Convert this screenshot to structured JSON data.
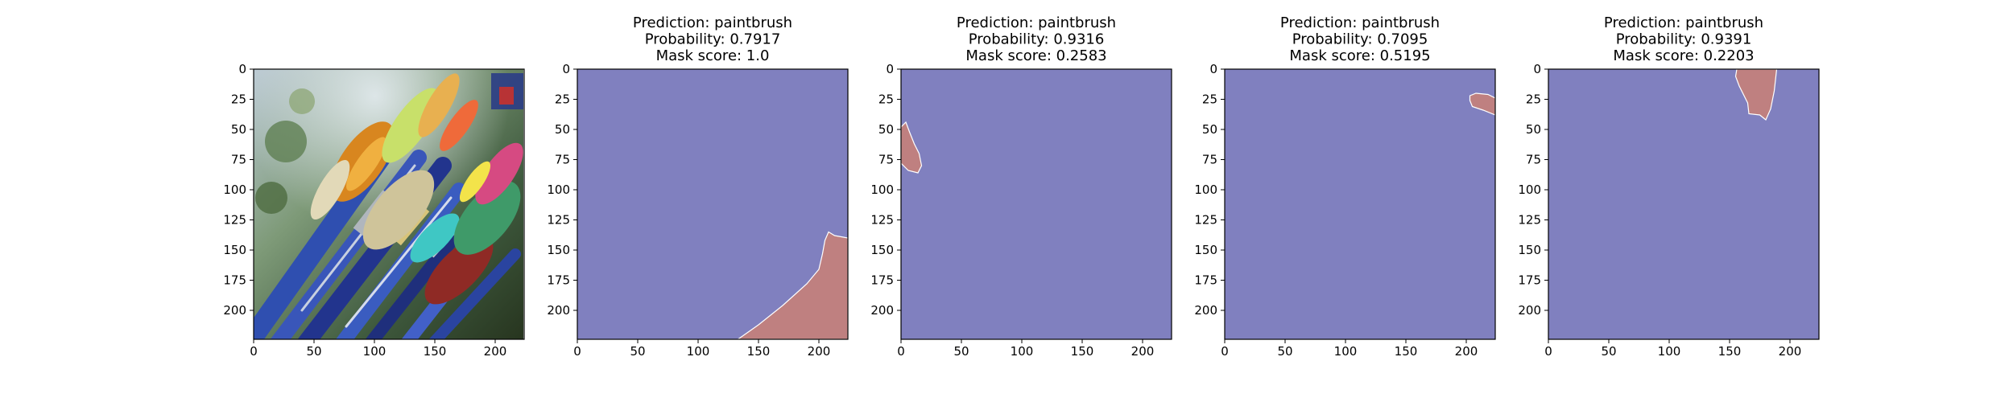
{
  "figure": {
    "panels": [
      {
        "id": "original",
        "kind": "image",
        "image_description": "paintbrushes-photo",
        "title_lines": [],
        "xlim": [
          0,
          224
        ],
        "ylim": [
          224,
          0
        ],
        "xticks": [
          0,
          50,
          100,
          150,
          200
        ],
        "yticks": [
          0,
          25,
          50,
          75,
          100,
          125,
          150,
          175,
          200
        ]
      },
      {
        "id": "mask-1",
        "kind": "mask",
        "prediction": "paintbrush",
        "probability": "0.7917",
        "mask_score": "1.0",
        "title_lines": [
          "Prediction: paintbrush",
          "Probability: 0.7917",
          "Mask score: 1.0"
        ],
        "xlim": [
          0,
          224
        ],
        "ylim": [
          224,
          0
        ],
        "xticks": [
          0,
          50,
          100,
          150,
          200
        ],
        "yticks": [
          0,
          25,
          50,
          75,
          100,
          125,
          150,
          175,
          200
        ],
        "region_polygon": [
          [
            133,
            224
          ],
          [
            150,
            212
          ],
          [
            170,
            196
          ],
          [
            190,
            178
          ],
          [
            200,
            166
          ],
          [
            203,
            153
          ],
          [
            205,
            142
          ],
          [
            208,
            135
          ],
          [
            213,
            138
          ],
          [
            224,
            140
          ],
          [
            224,
            224
          ]
        ]
      },
      {
        "id": "mask-2",
        "kind": "mask",
        "prediction": "paintbrush",
        "probability": "0.9316",
        "mask_score": "0.2583",
        "title_lines": [
          "Prediction: paintbrush",
          "Probability: 0.9316",
          "Mask score: 0.2583"
        ],
        "xlim": [
          0,
          224
        ],
        "ylim": [
          224,
          0
        ],
        "xticks": [
          0,
          50,
          100,
          150,
          200
        ],
        "yticks": [
          0,
          25,
          50,
          75,
          100,
          125,
          150,
          175,
          200
        ],
        "region_polygon": [
          [
            0,
            48
          ],
          [
            4,
            44
          ],
          [
            7,
            52
          ],
          [
            11,
            62
          ],
          [
            15,
            70
          ],
          [
            17,
            80
          ],
          [
            14,
            86
          ],
          [
            6,
            84
          ],
          [
            0,
            78
          ]
        ]
      },
      {
        "id": "mask-3",
        "kind": "mask",
        "prediction": "paintbrush",
        "probability": "0.7095",
        "mask_score": "0.5195",
        "title_lines": [
          "Prediction: paintbrush",
          "Probability: 0.7095",
          "Mask score: 0.5195"
        ],
        "xlim": [
          0,
          224
        ],
        "ylim": [
          224,
          0
        ],
        "xticks": [
          0,
          50,
          100,
          150,
          200
        ],
        "yticks": [
          0,
          25,
          50,
          75,
          100,
          125,
          150,
          175,
          200
        ],
        "region_polygon": [
          [
            203,
            22
          ],
          [
            208,
            20
          ],
          [
            218,
            21
          ],
          [
            224,
            24
          ],
          [
            224,
            38
          ],
          [
            214,
            34
          ],
          [
            205,
            31
          ],
          [
            203,
            26
          ]
        ]
      },
      {
        "id": "mask-4",
        "kind": "mask",
        "prediction": "paintbrush",
        "probability": "0.9391",
        "mask_score": "0.2203",
        "title_lines": [
          "Prediction: paintbrush",
          "Probability: 0.9391",
          "Mask score: 0.2203"
        ],
        "xlim": [
          0,
          224
        ],
        "ylim": [
          224,
          0
        ],
        "xticks": [
          0,
          50,
          100,
          150,
          200
        ],
        "yticks": [
          0,
          25,
          50,
          75,
          100,
          125,
          150,
          175,
          200
        ],
        "region_polygon": [
          [
            156,
            0
          ],
          [
            189,
            0
          ],
          [
            187,
            18
          ],
          [
            184,
            33
          ],
          [
            180,
            42
          ],
          [
            175,
            38
          ],
          [
            166,
            37
          ],
          [
            165,
            28
          ],
          [
            158,
            14
          ],
          [
            155,
            6
          ]
        ]
      }
    ],
    "colors": {
      "background_class": "#8080bf",
      "predicted_region": "#bf8080",
      "region_outline": "#ffffff",
      "axis": "#000000"
    }
  },
  "chart_data": [
    {
      "type": "heatmap",
      "title": "",
      "content": "input photo of paintbrushes",
      "xlim": [
        0,
        224
      ],
      "ylim": [
        224,
        0
      ],
      "xticks": [
        0,
        50,
        100,
        150,
        200
      ],
      "yticks": [
        0,
        25,
        50,
        75,
        100,
        125,
        150,
        175,
        200
      ]
    },
    {
      "type": "heatmap",
      "title": "Prediction: paintbrush\nProbability: 0.7917\nMask score: 1.0",
      "xlim": [
        0,
        224
      ],
      "ylim": [
        224,
        0
      ],
      "mask_region": "bottom-right",
      "region_polygon": [
        [
          133,
          224
        ],
        [
          150,
          212
        ],
        [
          170,
          196
        ],
        [
          190,
          178
        ],
        [
          200,
          166
        ],
        [
          203,
          153
        ],
        [
          205,
          142
        ],
        [
          208,
          135
        ],
        [
          213,
          138
        ],
        [
          224,
          140
        ],
        [
          224,
          224
        ]
      ]
    },
    {
      "type": "heatmap",
      "title": "Prediction: paintbrush\nProbability: 0.9316\nMask score: 0.2583",
      "xlim": [
        0,
        224
      ],
      "ylim": [
        224,
        0
      ],
      "mask_region": "left-edge",
      "region_polygon": [
        [
          0,
          48
        ],
        [
          4,
          44
        ],
        [
          7,
          52
        ],
        [
          11,
          62
        ],
        [
          15,
          70
        ],
        [
          17,
          80
        ],
        [
          14,
          86
        ],
        [
          6,
          84
        ],
        [
          0,
          78
        ]
      ]
    },
    {
      "type": "heatmap",
      "title": "Prediction: paintbrush\nProbability: 0.7095\nMask score: 0.5195",
      "xlim": [
        0,
        224
      ],
      "ylim": [
        224,
        0
      ],
      "mask_region": "top-right",
      "region_polygon": [
        [
          203,
          22
        ],
        [
          208,
          20
        ],
        [
          218,
          21
        ],
        [
          224,
          24
        ],
        [
          224,
          38
        ],
        [
          214,
          34
        ],
        [
          205,
          31
        ],
        [
          203,
          26
        ]
      ]
    },
    {
      "type": "heatmap",
      "title": "Prediction: paintbrush\nProbability: 0.9391\nMask score: 0.2203",
      "xlim": [
        0,
        224
      ],
      "ylim": [
        224,
        0
      ],
      "mask_region": "top-center-right",
      "region_polygon": [
        [
          156,
          0
        ],
        [
          189,
          0
        ],
        [
          187,
          18
        ],
        [
          184,
          33
        ],
        [
          180,
          42
        ],
        [
          175,
          38
        ],
        [
          166,
          37
        ],
        [
          165,
          28
        ],
        [
          158,
          14
        ],
        [
          155,
          6
        ]
      ]
    }
  ]
}
